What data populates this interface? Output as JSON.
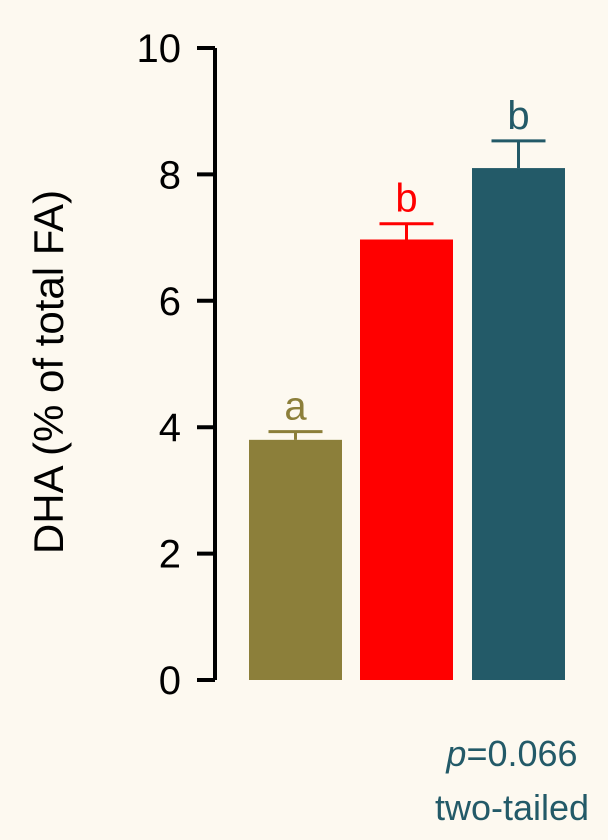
{
  "chart_data": {
    "type": "bar",
    "title": "",
    "xlabel": "",
    "ylabel": "DHA (% of total FA)",
    "ylim": [
      0,
      10
    ],
    "yticks": [
      "0",
      "2",
      "4",
      "6",
      "8",
      "10"
    ],
    "grid": false,
    "bars": [
      {
        "value": 3.8,
        "error": 0.13,
        "color": "#8c7f3a",
        "label": "a"
      },
      {
        "value": 6.97,
        "error": 0.25,
        "color": "#ff0000",
        "label": "b"
      },
      {
        "value": 8.1,
        "error": 0.43,
        "color": "#235a68",
        "label": "b"
      }
    ],
    "annotation": {
      "p_symbol": "p",
      "p_value": "=0.066",
      "test": "two-tailed"
    }
  }
}
